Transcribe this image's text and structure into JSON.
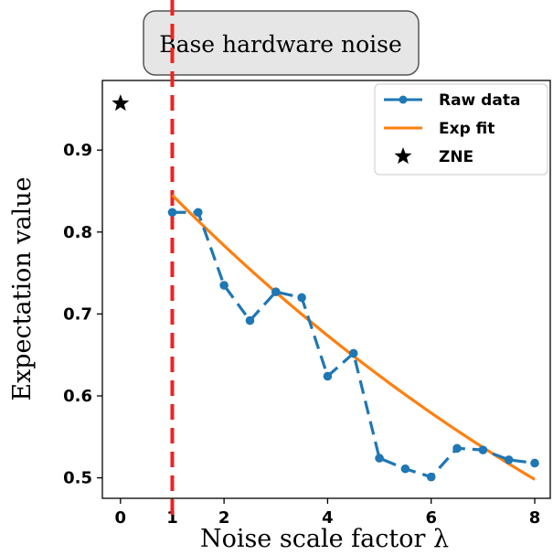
{
  "chart_data": {
    "type": "line",
    "title": "",
    "xlabel": "Noise scale factor λ",
    "ylabel": "Expectation value",
    "xlim": [
      -0.35,
      8.3
    ],
    "ylim": [
      0.475,
      0.985
    ],
    "xticks": [
      0,
      1,
      2,
      4,
      6,
      8
    ],
    "xtick_labels": [
      "0",
      "1",
      "2",
      "4",
      "6",
      "8"
    ],
    "yticks": [
      0.5,
      0.6,
      0.7,
      0.8,
      0.9
    ],
    "ytick_labels": [
      "0.5",
      "0.6",
      "0.7",
      "0.8",
      "0.9"
    ],
    "grid": false,
    "legend_position": "top-right",
    "series": [
      {
        "name": "Raw data",
        "style": "dashed line with circle markers",
        "color": "#1f77b4",
        "x": [
          1.0,
          1.5,
          2.0,
          2.5,
          3.0,
          3.5,
          4.0,
          4.5,
          5.0,
          5.5,
          6.0,
          6.5,
          7.0,
          7.5,
          8.0
        ],
        "y": [
          0.824,
          0.824,
          0.735,
          0.692,
          0.727,
          0.72,
          0.624,
          0.652,
          0.524,
          0.511,
          0.501,
          0.536,
          0.534,
          0.522,
          0.518
        ]
      },
      {
        "name": "Exp fit",
        "style": "solid line",
        "color": "#ff7f0e",
        "x": [
          1.0,
          1.5,
          2.0,
          2.5,
          3.0,
          3.5,
          4.0,
          4.5,
          5.0,
          5.5,
          6.0,
          6.5,
          7.0,
          7.5,
          8.0
        ],
        "y": [
          0.845,
          0.806,
          0.77,
          0.737,
          0.706,
          0.677,
          0.651,
          0.626,
          0.604,
          0.583,
          0.564,
          0.546,
          0.529,
          0.514,
          0.498
        ]
      },
      {
        "name": "ZNE",
        "style": "star marker",
        "color": "#000000",
        "x": [
          0
        ],
        "y": [
          0.957
        ]
      }
    ],
    "reference_line": {
      "x": 1,
      "color": "#ee2222",
      "style": "dashed"
    },
    "annotation": {
      "text": "Base hardware noise"
    }
  }
}
